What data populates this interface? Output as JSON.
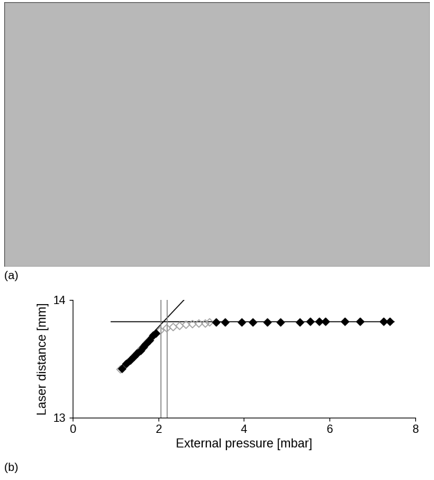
{
  "photo_label": "(a)",
  "chart_data": {
    "type": "scatter",
    "panel_label": "(b)",
    "x_label": "External pressure [mbar]",
    "y_label": "Laser distance [mm]",
    "xlim": [
      0,
      8
    ],
    "xticks": [
      0,
      2,
      4,
      6,
      8
    ],
    "ylim": [
      13,
      14
    ],
    "yticks": [
      13,
      14
    ],
    "grid": false,
    "series": [
      {
        "type": "scatter",
        "marker": "D",
        "color": "#a0a0a0",
        "fill": "none",
        "x": [
          1.12,
          1.3,
          1.45,
          1.6,
          1.75,
          1.9,
          2.05,
          2.2,
          2.35,
          2.5,
          2.65,
          2.8,
          2.95,
          3.1,
          3.2
        ],
        "values": [
          13.41,
          13.47,
          13.52,
          13.58,
          13.64,
          13.7,
          13.74,
          13.76,
          13.77,
          13.78,
          13.79,
          13.795,
          13.8,
          13.8,
          13.81
        ]
      },
      {
        "type": "scatter",
        "marker": "D",
        "color": "#000000",
        "x": [
          1.15,
          1.25,
          1.35,
          1.42,
          1.5,
          1.58,
          1.65,
          1.72,
          1.8,
          1.88,
          1.95
        ],
        "values": [
          13.42,
          13.46,
          13.49,
          13.52,
          13.55,
          13.57,
          13.6,
          13.63,
          13.66,
          13.7,
          13.72
        ]
      },
      {
        "type": "scatter",
        "marker": "D",
        "color": "#000000",
        "x": [
          3.35,
          3.55,
          3.95,
          4.2,
          4.55,
          4.85,
          5.3,
          5.55,
          5.75,
          5.9,
          6.35,
          6.7,
          7.25,
          7.4
        ],
        "values": [
          13.81,
          13.81,
          13.81,
          13.81,
          13.815,
          13.815,
          13.815,
          13.82,
          13.82,
          13.82,
          13.82,
          13.82,
          13.82,
          13.82
        ]
      },
      {
        "type": "line",
        "line_style": "solid",
        "color": "#000000",
        "x": [
          1.1,
          2.6
        ],
        "values": [
          13.42,
          14.0
        ]
      },
      {
        "type": "line",
        "line_style": "solid",
        "color": "#000000",
        "x": [
          0.9,
          7.5
        ],
        "values": [
          13.82,
          13.82
        ]
      },
      {
        "type": "line",
        "line_style": "solid",
        "color": "#808080",
        "x": [
          2.05,
          2.05
        ],
        "values": [
          13.0,
          14.0
        ]
      },
      {
        "type": "line",
        "line_style": "solid",
        "color": "#808080",
        "x": [
          2.2,
          2.2
        ],
        "values": [
          13.0,
          14.0
        ]
      }
    ]
  }
}
